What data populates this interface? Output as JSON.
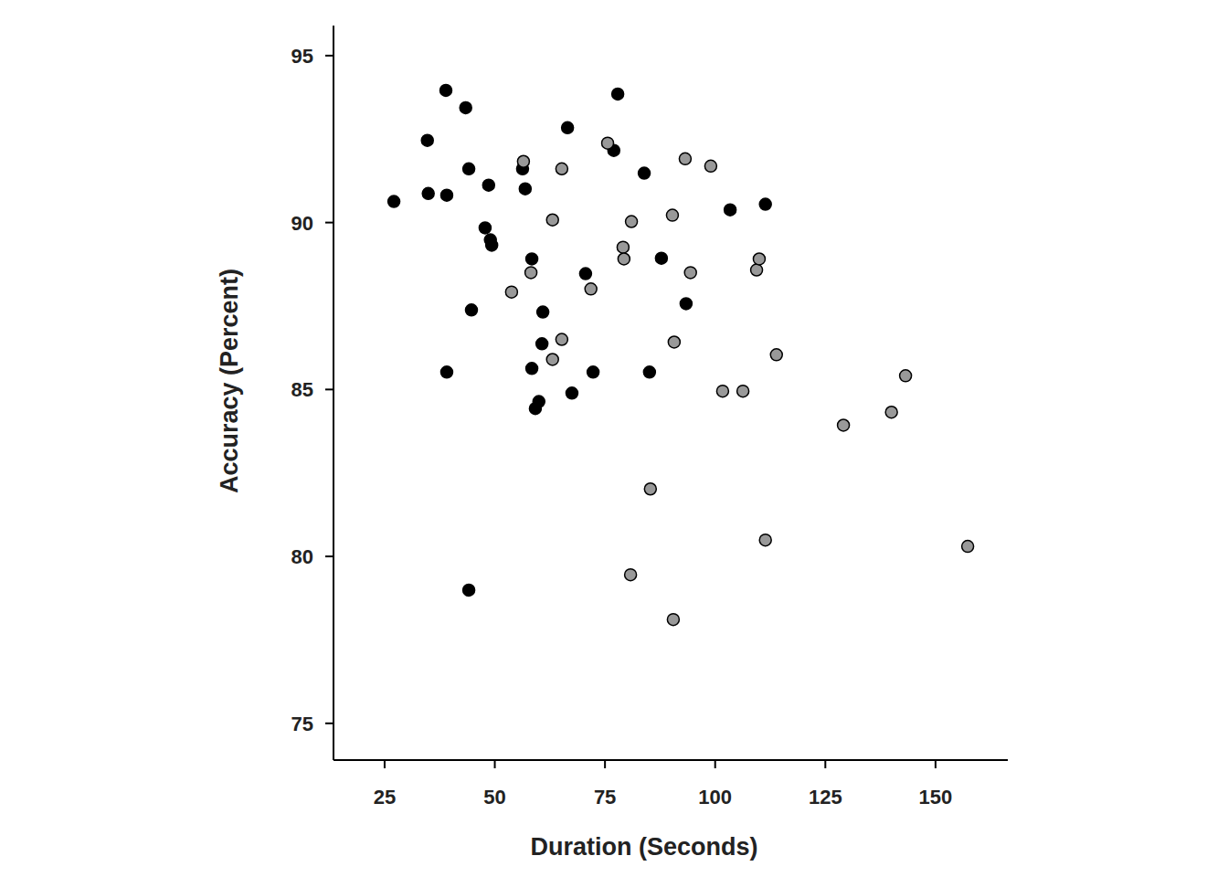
{
  "chart_data": {
    "type": "scatter",
    "x_label": "Duration (Seconds)",
    "y_label": "Accuracy (Percent)",
    "xlim": [
      13.4,
      166.4
    ],
    "ylim": [
      73.9,
      95.9
    ],
    "xticks": [
      25,
      50,
      75,
      100,
      125,
      150
    ],
    "yticks": [
      75,
      80,
      85,
      90,
      95
    ],
    "grid": false,
    "marker": "circle",
    "series": [
      {
        "color": "#000000",
        "x": [
          27.1,
          34.7,
          34.9,
          38.9,
          39.1,
          39.1,
          43.4,
          44.1,
          44.7,
          44.1,
          47.8,
          48.6,
          49.0,
          49.3,
          56.3,
          56.9,
          58.4,
          58.4,
          59.2,
          60.0,
          60.7,
          60.9,
          66.5,
          67.5,
          70.6,
          72.3,
          77.0,
          77.9,
          83.9,
          85.1,
          87.8,
          93.4,
          103.4,
          111.4
        ],
        "values": [
          90.63,
          92.46,
          90.87,
          93.96,
          90.82,
          85.52,
          93.44,
          91.61,
          87.38,
          78.99,
          89.84,
          91.12,
          89.48,
          89.32,
          91.61,
          91.01,
          88.91,
          85.63,
          84.43,
          84.64,
          86.37,
          87.32,
          92.84,
          84.89,
          88.47,
          85.52,
          92.16,
          93.85,
          91.48,
          85.52,
          88.93,
          87.57,
          90.38,
          90.55
        ]
      },
      {
        "color": "#999999",
        "x": [
          56.5,
          53.8,
          58.2,
          63.1,
          63.1,
          65.2,
          65.2,
          71.8,
          75.6,
          79.1,
          79.3,
          81.0,
          80.8,
          85.3,
          90.3,
          90.7,
          90.5,
          93.2,
          94.4,
          99.0,
          101.7,
          106.3,
          109.4,
          110.0,
          111.4,
          113.9,
          129.1,
          140.0,
          143.2,
          157.3
        ],
        "values": [
          91.83,
          87.92,
          88.5,
          90.08,
          85.9,
          91.61,
          86.5,
          88.01,
          92.38,
          89.26,
          88.91,
          90.03,
          79.45,
          82.02,
          90.22,
          86.42,
          78.11,
          91.91,
          88.5,
          91.69,
          84.95,
          84.95,
          88.58,
          88.91,
          80.49,
          86.04,
          83.93,
          84.32,
          85.41,
          80.3
        ]
      }
    ]
  }
}
